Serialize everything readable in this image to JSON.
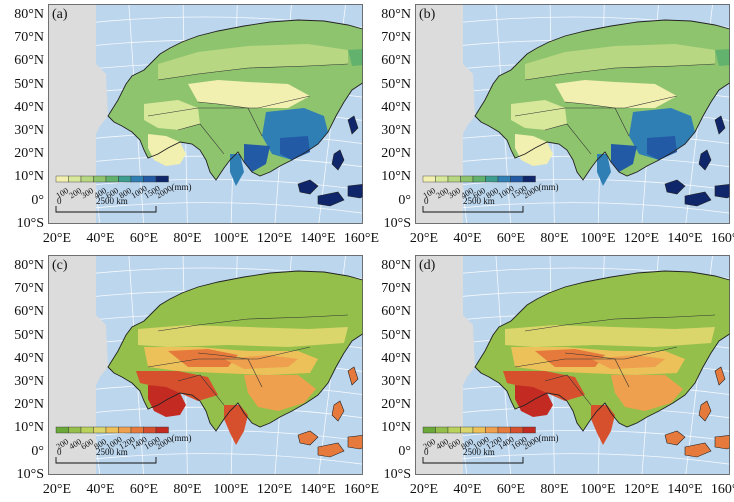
{
  "panels": [
    {
      "tag": "(a)",
      "scheme": "precip",
      "unit": "(mm)",
      "legend": [
        "100",
        "200",
        "300",
        "400",
        "600",
        "800",
        "1000",
        "1500",
        "2000"
      ]
    },
    {
      "tag": "(b)",
      "scheme": "precip",
      "unit": "(mm)",
      "legend": [
        "100",
        "200",
        "300",
        "400",
        "600",
        "800",
        "1000",
        "1500",
        "2000"
      ]
    },
    {
      "tag": "(c)",
      "scheme": "pet",
      "unit": "(mm)",
      "legend": [
        "200",
        "400",
        "600",
        "800",
        "1000",
        "1200",
        "1400",
        "1600",
        "2000"
      ]
    },
    {
      "tag": "(d)",
      "scheme": "pet",
      "unit": "(mm)",
      "legend": [
        "200",
        "400",
        "600",
        "800",
        "1000",
        "1200",
        "1400",
        "1600",
        "2000"
      ]
    }
  ],
  "lat_labels": [
    "80°N",
    "70°N",
    "60°N",
    "50°N",
    "40°N",
    "30°N",
    "20°N",
    "10°N",
    "0°",
    "10°S"
  ],
  "lon_labels": [
    "20°E",
    "40°E",
    "60°E",
    "80°E",
    "100°E",
    "120°E",
    "140°E",
    "160°E"
  ],
  "scale_bar": {
    "zero": "0",
    "distance": "2500 km"
  },
  "colors": {
    "ocean": "#bcd6ee",
    "land_outside": "#dcdcdc",
    "precip": [
      "#f2f0b0",
      "#d8e89a",
      "#b7d782",
      "#8fc46e",
      "#62b26e",
      "#3d9d8e",
      "#2f7fb5",
      "#235aa6",
      "#10266b"
    ],
    "pet": [
      "#6aa83a",
      "#93bf4a",
      "#b9d25c",
      "#dad66c",
      "#ecc15a",
      "#eea04e",
      "#e57a3c",
      "#d6502e",
      "#c22a22"
    ]
  }
}
